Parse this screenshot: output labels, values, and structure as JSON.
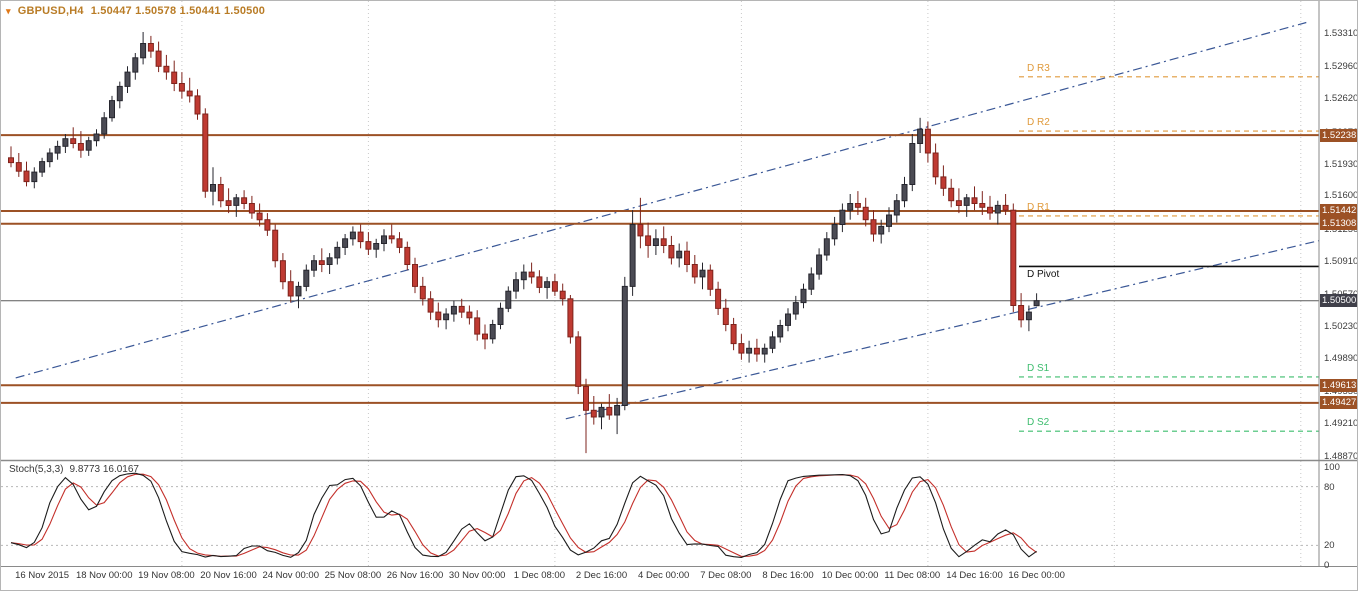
{
  "window": {
    "symbol_period": "GBPUSD,H4",
    "ohlc_values": "1.50447 1.50578 1.50441 1.50500"
  },
  "colors": {
    "title_text": "#b97c26",
    "marker": "#e07818",
    "bull_candle": "#4b4b54",
    "bear_candle": "#bf3a32",
    "candle_outline": "#26262e",
    "bear_outline": "#7e231c",
    "level_line": "#9c5125",
    "current_line": "#5a5a5a",
    "current_badge": "#40404a",
    "pivot_r": "#e09a3c",
    "pivot_s": "#3dbd6e",
    "pivot_p": "#111111",
    "trendline": "#3a5796",
    "grid": "#c8c8c8",
    "separator": "#8a8a8a",
    "stoch_main": "#1c1c1c",
    "stoch_signal": "#c4302b",
    "axis_text": "#3c3c3c"
  },
  "price_axis_labels": [
    "1.53310",
    "1.52960",
    "1.52620",
    "1.52270",
    "1.51930",
    "1.51600",
    "1.51250",
    "1.50910",
    "1.50570",
    "1.50230",
    "1.49890",
    "1.49550",
    "1.49210",
    "1.48870"
  ],
  "level_lines": [
    {
      "label": "1.52238",
      "price": 1.52238,
      "type": "resistance"
    },
    {
      "label": "1.51442",
      "price": 1.51442,
      "type": "resistance"
    },
    {
      "label": "1.51308",
      "price": 1.51308,
      "type": "resistance"
    },
    {
      "label": "1.49613",
      "price": 1.49613,
      "type": "support"
    },
    {
      "label": "1.49427",
      "price": 1.49427,
      "type": "support"
    }
  ],
  "current_price": {
    "label": "1.50500",
    "price": 1.505
  },
  "pivot_levels": [
    {
      "label": "D R3",
      "price": 1.5285,
      "kind": "r"
    },
    {
      "label": "D R2",
      "price": 1.5228,
      "kind": "r"
    },
    {
      "label": "D R1",
      "price": 1.5139,
      "kind": "r"
    },
    {
      "label": "D Pivot",
      "price": 1.5086,
      "kind": "p"
    },
    {
      "label": "D S1",
      "price": 1.497,
      "kind": "s"
    },
    {
      "label": "D S2",
      "price": 1.4913,
      "kind": "s"
    }
  ],
  "trendlines": [
    {
      "i1": 0.6,
      "p1": 1.4969,
      "i2": 166.7,
      "p2": 1.5342
    },
    {
      "i1": 71.4,
      "p1": 1.4926,
      "i2": 168.3,
      "p2": 1.5113
    }
  ],
  "stoch": {
    "name": "Stoch(5,3,3)",
    "values": "9.8773 16.0167",
    "axis_labels": [
      "100",
      "80",
      "20",
      "0"
    ],
    "levels": [
      80,
      20
    ]
  },
  "chart_data": {
    "type": "candlestick",
    "title": "GBPUSD,H4",
    "price_range": {
      "top": 1.5331,
      "bottom": 1.4887
    },
    "x_label_first_index": 4,
    "x_label_step": 8,
    "grid_indices": [
      22,
      46,
      70,
      94,
      118,
      142,
      166
    ],
    "x_labels": [
      "16 Nov 2015",
      "18 Nov 00:00",
      "19 Nov 08:00",
      "20 Nov 16:00",
      "24 Nov 00:00",
      "25 Nov 08:00",
      "26 Nov 16:00",
      "30 Nov 00:00",
      "1 Dec 08:00",
      "2 Dec 16:00",
      "4 Dec 00:00",
      "7 Dec 08:00",
      "8 Dec 16:00",
      "10 Dec 00:00",
      "11 Dec 08:00",
      "14 Dec 16:00",
      "16 Dec 00:00"
    ],
    "candles": [
      [
        1.52,
        1.5212,
        1.519,
        1.5195
      ],
      [
        1.5195,
        1.5205,
        1.518,
        1.5186
      ],
      [
        1.5186,
        1.5196,
        1.517,
        1.5175
      ],
      [
        1.5175,
        1.519,
        1.5168,
        1.5185
      ],
      [
        1.5185,
        1.52,
        1.518,
        1.5196
      ],
      [
        1.5196,
        1.521,
        1.519,
        1.5205
      ],
      [
        1.5205,
        1.5218,
        1.5198,
        1.5212
      ],
      [
        1.5212,
        1.5225,
        1.5205,
        1.522
      ],
      [
        1.522,
        1.5232,
        1.521,
        1.5215
      ],
      [
        1.5215,
        1.5228,
        1.52,
        1.5208
      ],
      [
        1.5208,
        1.5222,
        1.5202,
        1.5218
      ],
      [
        1.5218,
        1.523,
        1.5212,
        1.5225
      ],
      [
        1.5225,
        1.5248,
        1.522,
        1.5242
      ],
      [
        1.5242,
        1.5265,
        1.5238,
        1.526
      ],
      [
        1.526,
        1.528,
        1.5252,
        1.5275
      ],
      [
        1.5275,
        1.5296,
        1.5268,
        1.529
      ],
      [
        1.529,
        1.531,
        1.5282,
        1.5305
      ],
      [
        1.5305,
        1.5332,
        1.5298,
        1.532
      ],
      [
        1.532,
        1.5328,
        1.5305,
        1.5312
      ],
      [
        1.5312,
        1.5322,
        1.529,
        1.5296
      ],
      [
        1.5296,
        1.5308,
        1.5282,
        1.529
      ],
      [
        1.529,
        1.5302,
        1.527,
        1.5278
      ],
      [
        1.5278,
        1.529,
        1.5262,
        1.527
      ],
      [
        1.527,
        1.5284,
        1.5258,
        1.5265
      ],
      [
        1.5265,
        1.5272,
        1.524,
        1.5246
      ],
      [
        1.5246,
        1.5252,
        1.5158,
        1.5165
      ],
      [
        1.5165,
        1.519,
        1.515,
        1.5172
      ],
      [
        1.5172,
        1.518,
        1.5148,
        1.5155
      ],
      [
        1.5155,
        1.5168,
        1.5142,
        1.515
      ],
      [
        1.515,
        1.5162,
        1.5138,
        1.5158
      ],
      [
        1.5158,
        1.5166,
        1.5146,
        1.5152
      ],
      [
        1.5152,
        1.516,
        1.5136,
        1.5142
      ],
      [
        1.5142,
        1.5152,
        1.5128,
        1.5135
      ],
      [
        1.5135,
        1.5142,
        1.5118,
        1.5124
      ],
      [
        1.5124,
        1.513,
        1.5085,
        1.5092
      ],
      [
        1.5092,
        1.51,
        1.5062,
        1.507
      ],
      [
        1.507,
        1.5082,
        1.5048,
        1.5055
      ],
      [
        1.5055,
        1.507,
        1.5042,
        1.5065
      ],
      [
        1.5065,
        1.5088,
        1.506,
        1.5082
      ],
      [
        1.5082,
        1.5098,
        1.5075,
        1.5092
      ],
      [
        1.5092,
        1.5105,
        1.508,
        1.5088
      ],
      [
        1.5088,
        1.51,
        1.5078,
        1.5095
      ],
      [
        1.5095,
        1.5112,
        1.5088,
        1.5106
      ],
      [
        1.5106,
        1.512,
        1.5098,
        1.5115
      ],
      [
        1.5115,
        1.5128,
        1.5108,
        1.5122
      ],
      [
        1.5122,
        1.513,
        1.5105,
        1.5112
      ],
      [
        1.5112,
        1.5122,
        1.5098,
        1.5104
      ],
      [
        1.5104,
        1.5115,
        1.5095,
        1.511
      ],
      [
        1.511,
        1.5125,
        1.5102,
        1.5118
      ],
      [
        1.5118,
        1.513,
        1.511,
        1.5115
      ],
      [
        1.5115,
        1.5122,
        1.51,
        1.5106
      ],
      [
        1.5106,
        1.5112,
        1.5082,
        1.5088
      ],
      [
        1.5088,
        1.5095,
        1.5058,
        1.5065
      ],
      [
        1.5065,
        1.5075,
        1.5045,
        1.5052
      ],
      [
        1.5052,
        1.506,
        1.503,
        1.5038
      ],
      [
        1.5038,
        1.5048,
        1.5022,
        1.503
      ],
      [
        1.503,
        1.5042,
        1.502,
        1.5036
      ],
      [
        1.5036,
        1.505,
        1.5028,
        1.5044
      ],
      [
        1.5044,
        1.5052,
        1.5032,
        1.5038
      ],
      [
        1.5038,
        1.5045,
        1.5025,
        1.5032
      ],
      [
        1.5032,
        1.504,
        1.5008,
        1.5015
      ],
      [
        1.5015,
        1.5025,
        1.4999,
        1.501
      ],
      [
        1.501,
        1.503,
        1.5005,
        1.5025
      ],
      [
        1.5025,
        1.5048,
        1.502,
        1.5042
      ],
      [
        1.5042,
        1.5065,
        1.5038,
        1.506
      ],
      [
        1.506,
        1.508,
        1.5052,
        1.5072
      ],
      [
        1.5072,
        1.5088,
        1.5062,
        1.508
      ],
      [
        1.508,
        1.509,
        1.5068,
        1.5075
      ],
      [
        1.5075,
        1.5082,
        1.5058,
        1.5064
      ],
      [
        1.5064,
        1.5075,
        1.5052,
        1.507
      ],
      [
        1.507,
        1.5078,
        1.5055,
        1.506
      ],
      [
        1.506,
        1.5068,
        1.5045,
        1.5052
      ],
      [
        1.5052,
        1.5056,
        1.5005,
        1.5012
      ],
      [
        1.5012,
        1.5018,
        1.4952,
        1.496
      ],
      [
        1.496,
        1.4968,
        1.489,
        1.4935
      ],
      [
        1.4935,
        1.495,
        1.492,
        1.4928
      ],
      [
        1.4928,
        1.4942,
        1.4915,
        1.4938
      ],
      [
        1.4938,
        1.4952,
        1.4925,
        1.493
      ],
      [
        1.493,
        1.4948,
        1.491,
        1.494
      ],
      [
        1.494,
        1.5075,
        1.4935,
        1.5065
      ],
      [
        1.5065,
        1.5145,
        1.5055,
        1.513
      ],
      [
        1.513,
        1.5158,
        1.5105,
        1.5118
      ],
      [
        1.5118,
        1.5132,
        1.5095,
        1.5108
      ],
      [
        1.5108,
        1.5125,
        1.5098,
        1.5115
      ],
      [
        1.5115,
        1.5128,
        1.51,
        1.5108
      ],
      [
        1.5108,
        1.5118,
        1.5088,
        1.5095
      ],
      [
        1.5095,
        1.511,
        1.5085,
        1.5102
      ],
      [
        1.5102,
        1.5112,
        1.508,
        1.5088
      ],
      [
        1.5088,
        1.5098,
        1.5068,
        1.5075
      ],
      [
        1.5075,
        1.509,
        1.5062,
        1.5082
      ],
      [
        1.5082,
        1.5088,
        1.5055,
        1.5062
      ],
      [
        1.5062,
        1.507,
        1.5035,
        1.5042
      ],
      [
        1.5042,
        1.5052,
        1.5018,
        1.5025
      ],
      [
        1.5025,
        1.5032,
        1.4998,
        1.5005
      ],
      [
        1.5005,
        1.5015,
        1.4988,
        1.4995
      ],
      [
        1.4995,
        1.5008,
        1.4985,
        1.5
      ],
      [
        1.5,
        1.501,
        1.4986,
        1.4994
      ],
      [
        1.4994,
        1.5005,
        1.4985,
        1.5
      ],
      [
        1.5,
        1.5018,
        1.4995,
        1.5012
      ],
      [
        1.5012,
        1.503,
        1.5006,
        1.5024
      ],
      [
        1.5024,
        1.5042,
        1.5018,
        1.5036
      ],
      [
        1.5036,
        1.5055,
        1.503,
        1.5048
      ],
      [
        1.5048,
        1.5068,
        1.5042,
        1.5062
      ],
      [
        1.5062,
        1.5085,
        1.5056,
        1.5078
      ],
      [
        1.5078,
        1.5105,
        1.5072,
        1.5098
      ],
      [
        1.5098,
        1.5122,
        1.5092,
        1.5115
      ],
      [
        1.5115,
        1.5138,
        1.5108,
        1.513
      ],
      [
        1.513,
        1.5152,
        1.5122,
        1.5145
      ],
      [
        1.5145,
        1.5162,
        1.5135,
        1.5152
      ],
      [
        1.5152,
        1.5165,
        1.514,
        1.5148
      ],
      [
        1.5148,
        1.5158,
        1.5128,
        1.5135
      ],
      [
        1.5135,
        1.5145,
        1.5112,
        1.512
      ],
      [
        1.512,
        1.5135,
        1.511,
        1.5128
      ],
      [
        1.5128,
        1.5148,
        1.5122,
        1.514
      ],
      [
        1.514,
        1.5162,
        1.5132,
        1.5155
      ],
      [
        1.5155,
        1.518,
        1.5148,
        1.5172
      ],
      [
        1.5172,
        1.5225,
        1.5165,
        1.5215
      ],
      [
        1.5215,
        1.5242,
        1.5205,
        1.523
      ],
      [
        1.523,
        1.5238,
        1.5195,
        1.5205
      ],
      [
        1.5205,
        1.5215,
        1.5172,
        1.518
      ],
      [
        1.518,
        1.5192,
        1.516,
        1.5168
      ],
      [
        1.5168,
        1.5178,
        1.5148,
        1.5155
      ],
      [
        1.5155,
        1.5168,
        1.5142,
        1.515
      ],
      [
        1.515,
        1.5162,
        1.5138,
        1.5158
      ],
      [
        1.5158,
        1.517,
        1.5145,
        1.5152
      ],
      [
        1.5152,
        1.5165,
        1.514,
        1.5148
      ],
      [
        1.5148,
        1.516,
        1.5135,
        1.5142
      ],
      [
        1.5142,
        1.5155,
        1.513,
        1.515
      ],
      [
        1.515,
        1.5162,
        1.514,
        1.5145
      ],
      [
        1.5145,
        1.5152,
        1.5038,
        1.5045
      ],
      [
        1.5045,
        1.5058,
        1.5022,
        1.503
      ],
      [
        1.503,
        1.5045,
        1.5018,
        1.5038
      ],
      [
        1.50447,
        1.50578,
        1.50441,
        1.505
      ]
    ],
    "indicator": {
      "type": "stochastic",
      "name": "Stoch(5,3,3)",
      "k_period": 5,
      "slowing": 3,
      "d_period": 3,
      "last_k": 9.8773,
      "last_d": 16.0167,
      "levels": [
        80,
        20
      ],
      "range": [
        0,
        100
      ]
    }
  }
}
